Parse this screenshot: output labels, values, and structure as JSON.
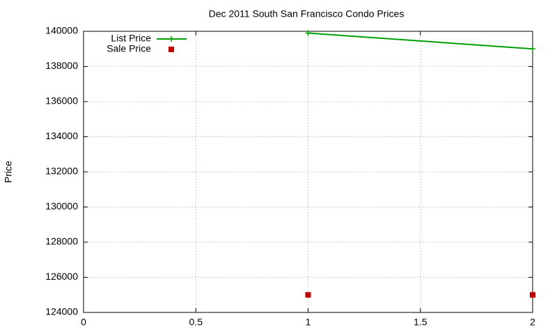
{
  "chart_data": {
    "type": "line",
    "title": "Dec 2011 South San Francisco Condo Prices",
    "y_label": "Price",
    "x": [
      1,
      2
    ],
    "series": [
      {
        "name": "List Price",
        "color": "#00a000",
        "style": "linespoints",
        "values": [
          139900,
          139000
        ]
      },
      {
        "name": "Sale Price",
        "color": "#c00000",
        "style": "points",
        "values": [
          125000,
          125000
        ]
      }
    ],
    "xlim": [
      0,
      2
    ],
    "xticks": [
      0,
      0.5,
      1,
      1.5,
      2
    ],
    "ylim": [
      124000,
      140000
    ],
    "yticks": [
      124000,
      126000,
      128000,
      130000,
      132000,
      134000,
      136000,
      138000,
      140000
    ],
    "grid": true,
    "legend": "top-left"
  }
}
